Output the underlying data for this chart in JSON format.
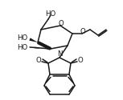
{
  "bg_color": "#ffffff",
  "line_color": "#1a1a1a",
  "text_color": "#1a1a1a",
  "line_width": 1.1,
  "font_size": 6.2,
  "bold_lw": 3.0
}
